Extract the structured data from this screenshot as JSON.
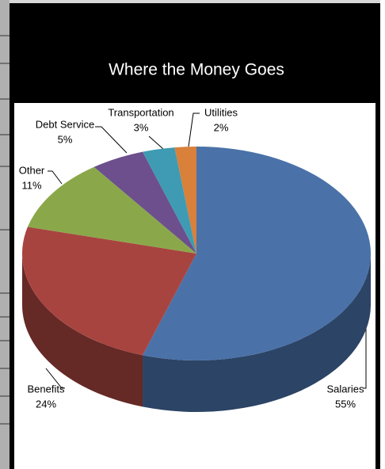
{
  "chart_data": {
    "type": "pie",
    "title": "Where the Money Goes",
    "categories": [
      "Salaries",
      "Benefits",
      "Other",
      "Debt Service",
      "Transportation",
      "Utilities"
    ],
    "values": [
      55,
      24,
      11,
      5,
      3,
      2
    ],
    "value_labels": [
      "55%",
      "24%",
      "11%",
      "5%",
      "3%",
      "2%"
    ],
    "colors": [
      "#4a72a8",
      "#a84440",
      "#8aa84a",
      "#6c4f8c",
      "#3f9bb3",
      "#d9803a"
    ]
  }
}
